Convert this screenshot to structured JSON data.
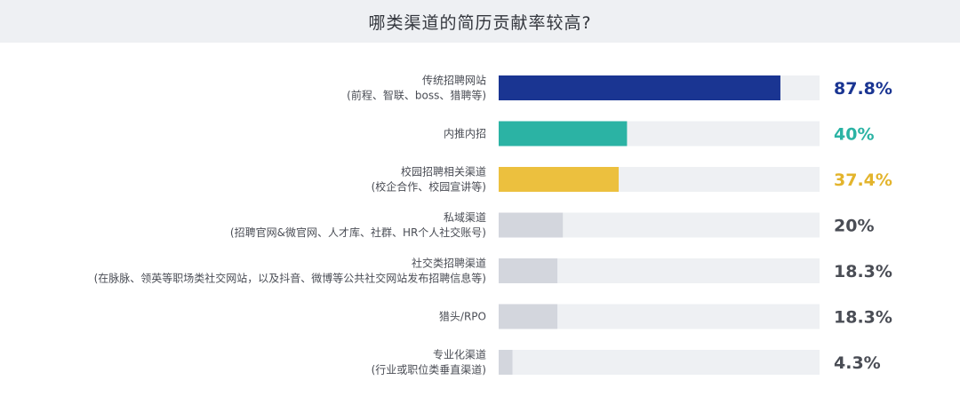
{
  "title": "哪类渠道的简历贡献率较高?",
  "chart_data": {
    "type": "bar",
    "orientation": "horizontal",
    "title": "哪类渠道的简历贡献率较高?",
    "xlim": [
      0,
      100
    ],
    "unit": "%",
    "grid": false,
    "track_color": "#eef0f3",
    "categories": [
      {
        "label": [
          "传统招聘网站",
          "(前程、智联、boss、猎聘等)"
        ],
        "value": 87.8,
        "display": "87.8%",
        "bar_color": "#1a3592",
        "text_color": "#1a3592"
      },
      {
        "label": [
          "内推内招"
        ],
        "value": 40,
        "display": "40%",
        "bar_color": "#2bb3a4",
        "text_color": "#2bb3a4"
      },
      {
        "label": [
          "校园招聘相关渠道",
          "(校企合作、校园宣讲等)"
        ],
        "value": 37.4,
        "display": "37.4%",
        "bar_color": "#ecc03e",
        "text_color": "#e3b42c"
      },
      {
        "label": [
          "私域渠道",
          "(招聘官网&微官网、人才库、社群、HR个人社交账号)"
        ],
        "value": 20,
        "display": "20%",
        "bar_color": "#d3d6dd",
        "text_color": "#4a4d55"
      },
      {
        "label": [
          "社交类招聘渠道",
          "(在脉脉、领英等职场类社交网站，以及抖音、微博等公共社交网站发布招聘信息等)"
        ],
        "value": 18.3,
        "display": "18.3%",
        "bar_color": "#d3d6dd",
        "text_color": "#4a4d55"
      },
      {
        "label": [
          "猎头/RPO"
        ],
        "value": 18.3,
        "display": "18.3%",
        "bar_color": "#d3d6dd",
        "text_color": "#4a4d55"
      },
      {
        "label": [
          "专业化渠道",
          "(行业或职位类垂直渠道)"
        ],
        "value": 4.3,
        "display": "4.3%",
        "bar_color": "#d3d6dd",
        "text_color": "#4a4d55"
      }
    ]
  }
}
